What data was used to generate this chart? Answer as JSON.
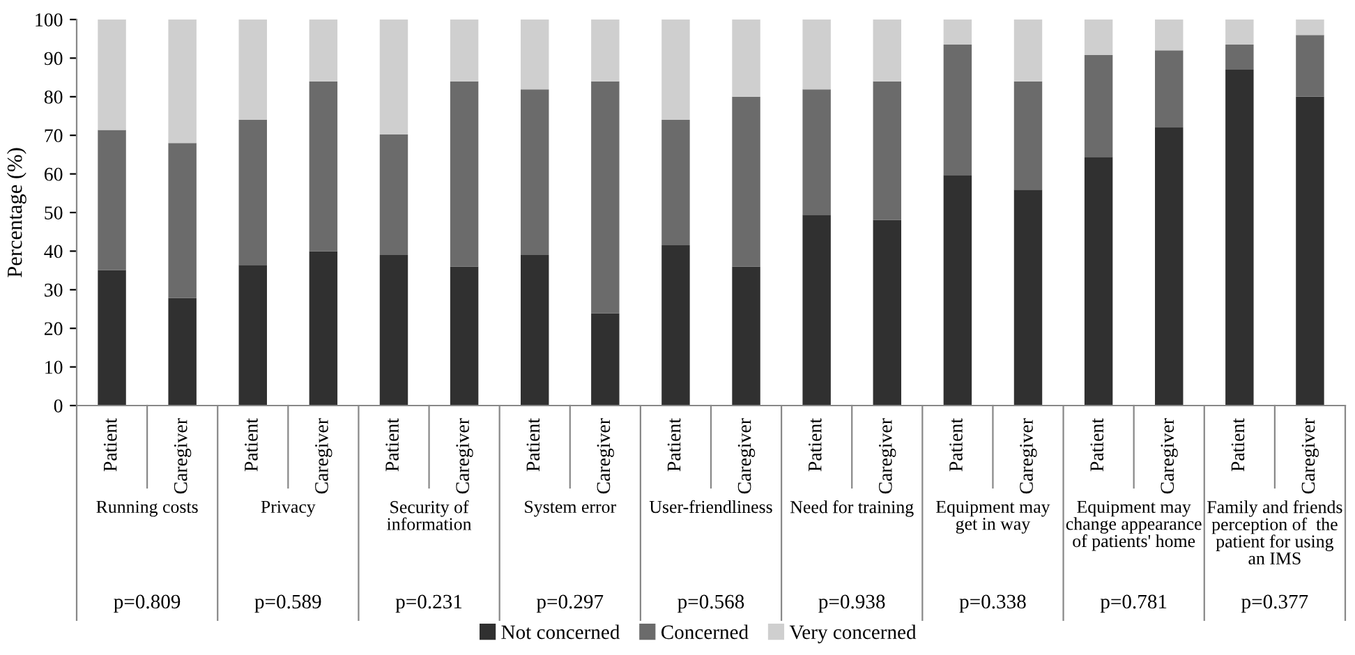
{
  "chart_data": {
    "type": "bar",
    "stacked": true,
    "ylabel": "Percentage (%)",
    "categories": [
      "Patient",
      "Caregiver",
      "Patient",
      "Caregiver",
      "Patient",
      "Caregiver",
      "Patient",
      "Caregiver",
      "Patient",
      "Caregiver",
      "Patient",
      "Caregiver",
      "Patient",
      "Caregiver",
      "Patient",
      "Caregiver",
      "Patient",
      "Caregiver"
    ],
    "series": [
      {
        "name": "Not concerned",
        "color": "#303030",
        "values": [
          35.1,
          27.9,
          36.4,
          40,
          39,
          36,
          39,
          23.9,
          41.5,
          36,
          49.4,
          48.1,
          59.7,
          55.9,
          64.4,
          72,
          87,
          80
        ]
      },
      {
        "name": "Concerned",
        "color": "#6b6b6b",
        "values": [
          36.3,
          40.1,
          37.6,
          44,
          31.2,
          48,
          42.9,
          60.1,
          32.5,
          44,
          32.5,
          35.9,
          33.8,
          28.1,
          26.4,
          20,
          6.5,
          16
        ]
      },
      {
        "name": "Very concerned",
        "color": "#cfcfcf",
        "values": [
          28.6,
          32,
          26,
          16,
          29.8,
          16,
          18.1,
          16,
          26,
          20,
          18.1,
          16,
          6.5,
          16,
          9.2,
          8,
          6.5,
          4
        ]
      }
    ],
    "annotations": [
      "Running costs",
      "Privacy",
      "Security of\ninformation",
      "System error",
      "User-friendliness",
      "Need for training",
      "Equipment may\nget in way",
      "Equipment may\nchange appearance\nof patients' home",
      "Family and friends\nperception of  the\npatient for using\nan IMS",
      "p=0.809",
      "p=0.589",
      "p=0.231",
      "p=0.297",
      "p=0.568",
      "p=0.938",
      "p=0.338",
      "p=0.781",
      "p=0.377"
    ],
    "ylim": [
      0,
      100
    ],
    "yticks": [
      0,
      10,
      20,
      30,
      40,
      50,
      60,
      70,
      80,
      90,
      100
    ],
    "grid": false,
    "legend": "bottom"
  }
}
